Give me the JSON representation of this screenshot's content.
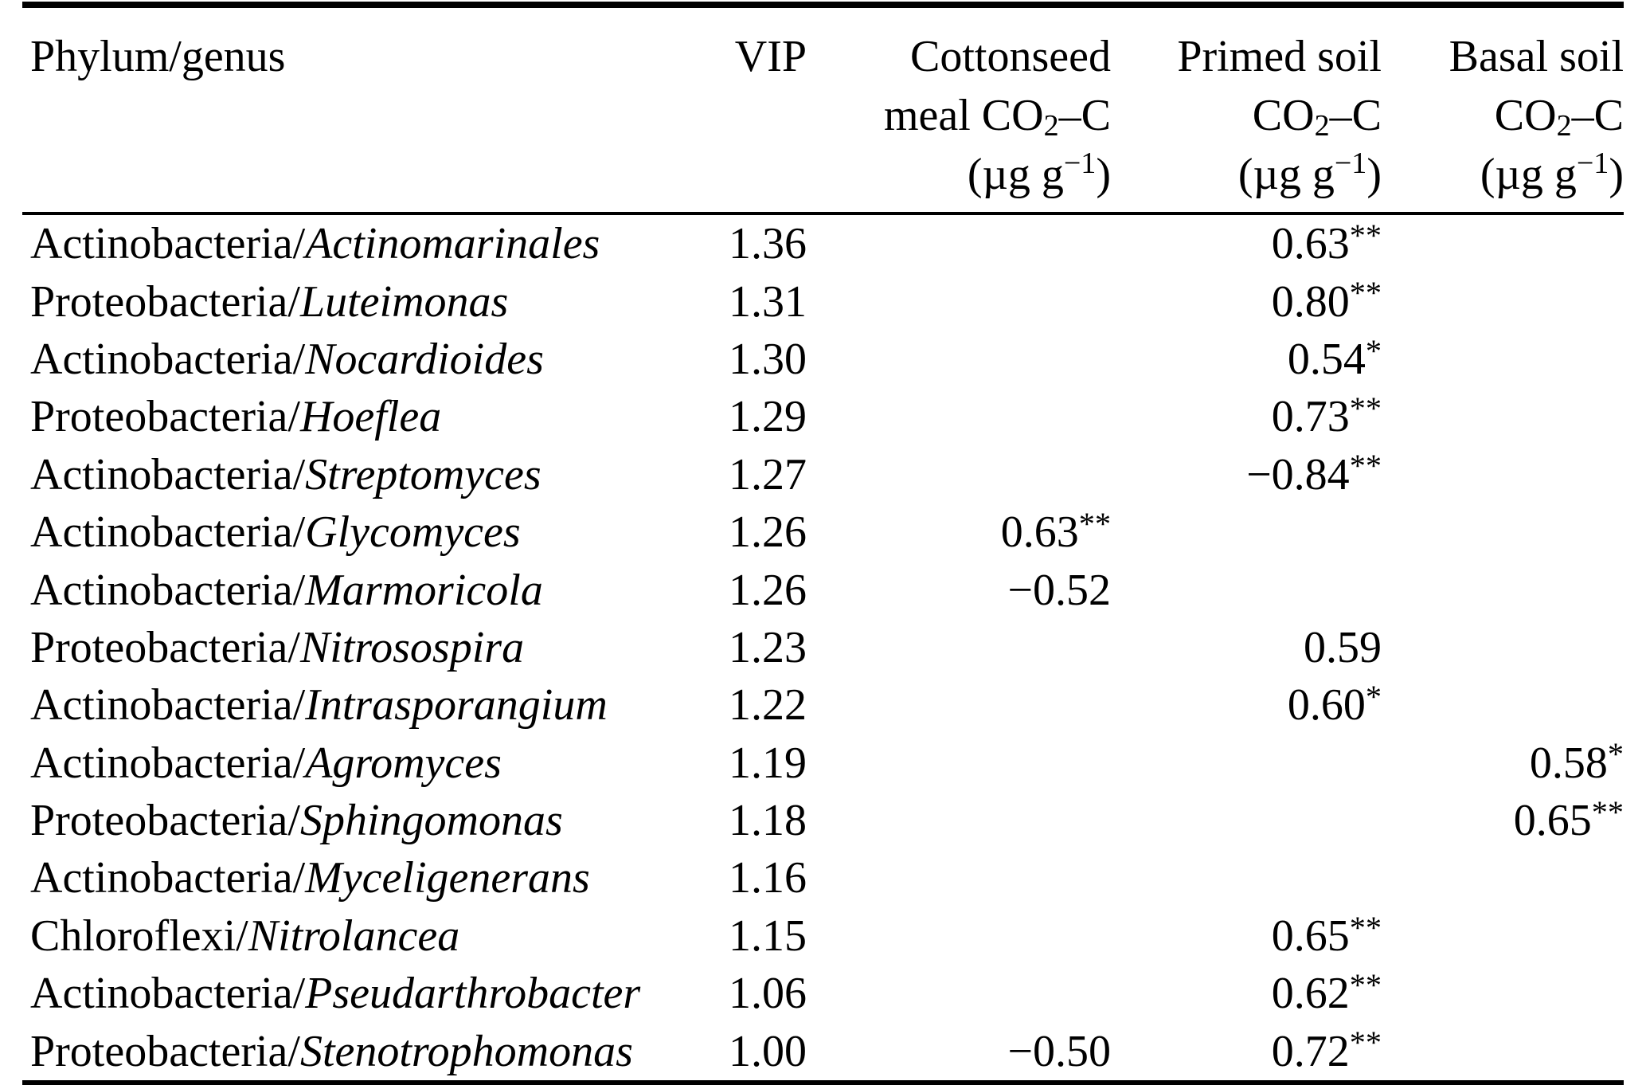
{
  "colors": {
    "text": "#000000",
    "background": "#ffffff",
    "rule": "#000000"
  },
  "table": {
    "header": {
      "phylum_genus": "Phylum/genus",
      "vip": "VIP",
      "cottonseed": {
        "line1": "Cottonseed",
        "line2_pre": "meal CO",
        "line2_sub": "2",
        "line2_post": "–C",
        "unit_pre": "(µg g",
        "unit_sup": "−1",
        "unit_post": ")"
      },
      "primed": {
        "line1": "Primed soil",
        "line2_pre": "CO",
        "line2_sub": "2",
        "line2_post": "–C",
        "unit_pre": "(µg g",
        "unit_sup": "−1",
        "unit_post": ")"
      },
      "basal": {
        "line1": "Basal soil",
        "line2_pre": "CO",
        "line2_sub": "2",
        "line2_post": "–C",
        "unit_pre": "(µg g",
        "unit_sup": "−1",
        "unit_post": ")"
      }
    },
    "rows": [
      {
        "phylum": "Actinobacteria/",
        "genus": "Actinomarinales",
        "vip": "1.36",
        "cottonseed": "",
        "primed": "0.63**",
        "basal": ""
      },
      {
        "phylum": "Proteobacteria/",
        "genus": "Luteimonas",
        "vip": "1.31",
        "cottonseed": "",
        "primed": "0.80**",
        "basal": ""
      },
      {
        "phylum": "Actinobacteria/",
        "genus": "Nocardioides",
        "vip": "1.30",
        "cottonseed": "",
        "primed": "0.54*",
        "basal": ""
      },
      {
        "phylum": "Proteobacteria/",
        "genus": "Hoeflea",
        "vip": "1.29",
        "cottonseed": "",
        "primed": "0.73**",
        "basal": ""
      },
      {
        "phylum": "Actinobacteria/",
        "genus": "Streptomyces",
        "vip": "1.27",
        "cottonseed": "",
        "primed": "−0.84**",
        "basal": ""
      },
      {
        "phylum": "Actinobacteria/",
        "genus": "Glycomyces",
        "vip": "1.26",
        "cottonseed": "0.63**",
        "primed": "",
        "basal": ""
      },
      {
        "phylum": "Actinobacteria/",
        "genus": "Marmoricola",
        "vip": "1.26",
        "cottonseed": "−0.52",
        "primed": "",
        "basal": ""
      },
      {
        "phylum": "Proteobacteria/",
        "genus": "Nitrosospira",
        "vip": "1.23",
        "cottonseed": "",
        "primed": "0.59",
        "basal": ""
      },
      {
        "phylum": "Actinobacteria/",
        "genus": "Intrasporangium",
        "vip": "1.22",
        "cottonseed": "",
        "primed": "0.60*",
        "basal": ""
      },
      {
        "phylum": "Actinobacteria/",
        "genus": "Agromyces",
        "vip": "1.19",
        "cottonseed": "",
        "primed": "",
        "basal": "0.58*"
      },
      {
        "phylum": "Proteobacteria/",
        "genus": "Sphingomonas",
        "vip": "1.18",
        "cottonseed": "",
        "primed": "",
        "basal": "0.65**"
      },
      {
        "phylum": "Actinobacteria/",
        "genus": "Myceligenerans",
        "vip": "1.16",
        "cottonseed": "",
        "primed": "",
        "basal": ""
      },
      {
        "phylum": "Chloroflexi/",
        "genus": "Nitrolancea",
        "vip": "1.15",
        "cottonseed": "",
        "primed": "0.65**",
        "basal": ""
      },
      {
        "phylum": "Actinobacteria/",
        "genus": "Pseudarthrobacter",
        "vip": "1.06",
        "cottonseed": "",
        "primed": "0.62**",
        "basal": ""
      },
      {
        "phylum": "Proteobacteria/",
        "genus": "Stenotrophomonas",
        "vip": "1.00",
        "cottonseed": "−0.50",
        "primed": "0.72**",
        "basal": ""
      }
    ]
  }
}
